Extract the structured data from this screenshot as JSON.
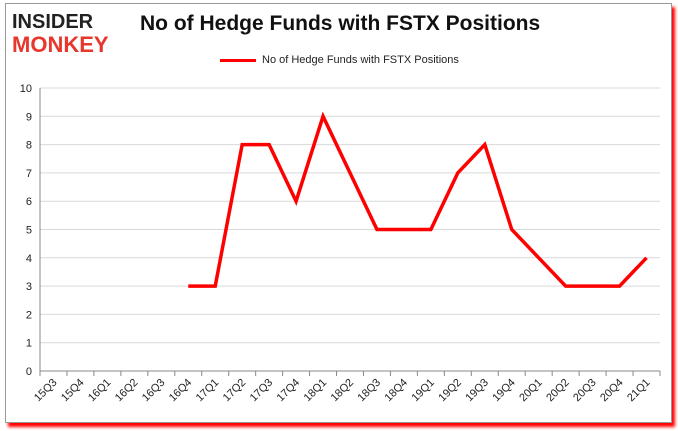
{
  "logo": {
    "line1": "INSIDER",
    "line2": "MONKEY"
  },
  "chart_data": {
    "type": "line",
    "title": "No of Hedge Funds with FSTX Positions",
    "xlabel": "",
    "ylabel": "",
    "categories": [
      "15Q3",
      "15Q4",
      "16Q1",
      "16Q2",
      "16Q3",
      "16Q4",
      "17Q1",
      "17Q2",
      "17Q3",
      "17Q4",
      "18Q1",
      "18Q2",
      "18Q3",
      "18Q4",
      "19Q1",
      "19Q2",
      "19Q3",
      "19Q4",
      "20Q1",
      "20Q2",
      "20Q3",
      "20Q4",
      "21Q1"
    ],
    "series": [
      {
        "name": "No of Hedge Funds with FSTX Positions",
        "color": "#ff0000",
        "values": [
          null,
          null,
          null,
          null,
          null,
          3,
          3,
          8,
          8,
          6,
          9,
          7,
          5,
          5,
          5,
          7,
          8,
          5,
          4,
          3,
          3,
          3,
          4
        ]
      }
    ],
    "ylim": [
      0,
      10
    ],
    "yticks": [
      "0",
      "1",
      "2",
      "3",
      "4",
      "5",
      "6",
      "7",
      "8",
      "9",
      "10"
    ],
    "grid": true,
    "legend": "top-center"
  }
}
